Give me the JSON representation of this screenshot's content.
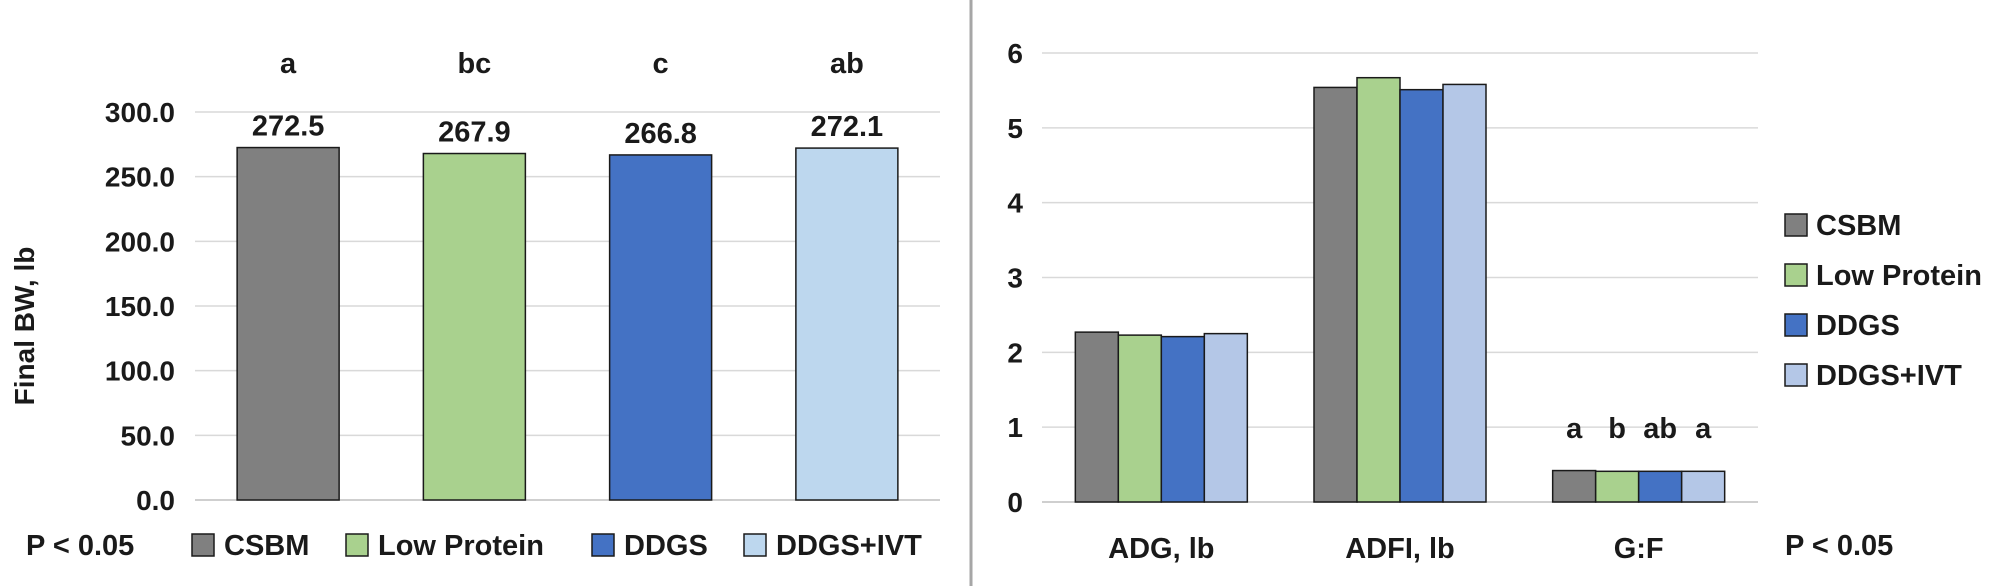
{
  "chart_data": [
    {
      "type": "bar",
      "categories": [
        "CSBM",
        "Low Protein",
        "DDGS",
        "DDGS+IVT"
      ],
      "values": [
        272.5,
        267.9,
        266.8,
        272.1
      ],
      "data_labels": [
        "272.5",
        "267.9",
        "266.8",
        "272.1"
      ],
      "significance_letters": [
        "a",
        "bc",
        "c",
        "ab"
      ],
      "colors": [
        "#808080",
        "#a9d18e",
        "#4472c4",
        "#bdd7ee"
      ],
      "ylabel": "Final BW, lb",
      "ylim": [
        0,
        300
      ],
      "yticks": [
        "0.0",
        "50.0",
        "100.0",
        "150.0",
        "200.0",
        "250.0",
        "300.0"
      ],
      "grid": true,
      "legend_position": "bottom",
      "note": "P < 0.05"
    },
    {
      "type": "bar",
      "categories": [
        "ADG, lb",
        "ADFI, lb",
        "G:F"
      ],
      "series": [
        {
          "name": "CSBM",
          "values": [
            2.27,
            5.54,
            0.42
          ],
          "color": "#808080"
        },
        {
          "name": "Low Protein",
          "values": [
            2.23,
            5.67,
            0.41
          ],
          "color": "#a9d18e"
        },
        {
          "name": "DDGS",
          "values": [
            2.21,
            5.51,
            0.41
          ],
          "color": "#4472c4"
        },
        {
          "name": "DDGS+IVT",
          "values": [
            2.25,
            5.58,
            0.41
          ],
          "color": "#b4c7e7"
        }
      ],
      "significance_letters": {
        "category": "G:F",
        "letters": [
          "a",
          "b",
          "ab",
          "a"
        ]
      },
      "ylim": [
        0,
        6
      ],
      "yticks": [
        "0",
        "1",
        "2",
        "3",
        "4",
        "5",
        "6"
      ],
      "grid": true,
      "legend_position": "right",
      "note": "P < 0.05"
    }
  ]
}
